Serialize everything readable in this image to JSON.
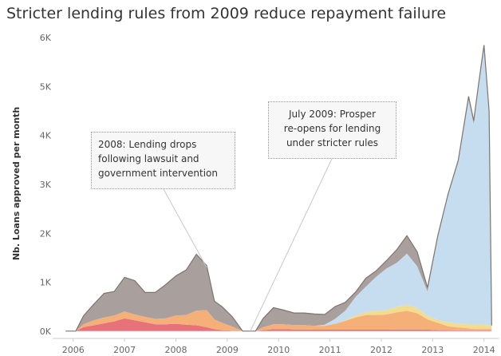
{
  "chart_data": {
    "type": "area",
    "title": "Stricter lending rules from 2009 reduce repayment failure",
    "ylabel": "Nb. Loans approved per month",
    "xlabel": "",
    "xlim": [
      2005.6,
      2014.3
    ],
    "ylim": [
      -150,
      6150
    ],
    "y_ticks": [
      0,
      1000,
      2000,
      3000,
      4000,
      5000,
      6000
    ],
    "y_tick_labels": [
      "0K",
      "1K",
      "2K",
      "3K",
      "4K",
      "5K",
      "6K"
    ],
    "x_ticks": [
      2006,
      2007,
      2008,
      2009,
      2010,
      2011,
      2012,
      2013,
      2014
    ],
    "x_tick_labels": [
      "2006",
      "2007",
      "2008",
      "2009",
      "2010",
      "2011",
      "2012",
      "2013",
      "2014"
    ],
    "stacked": true,
    "grid": false,
    "colors": {
      "red": "#e8727a",
      "orange": "#f5b07a",
      "yellow": "#f2dc8e",
      "blue": "#c6ddf0",
      "gray": "#a9a09d",
      "outline": "#7e7470",
      "axis": "#cccccc",
      "callout_line": "#c8c8c8"
    },
    "x": [
      2005.85,
      2006.05,
      2006.2,
      2006.4,
      2006.6,
      2006.8,
      2007.0,
      2007.2,
      2007.4,
      2007.6,
      2007.8,
      2008.0,
      2008.2,
      2008.4,
      2008.6,
      2008.75,
      2008.9,
      2009.1,
      2009.3,
      2009.4,
      2009.55,
      2009.7,
      2009.9,
      2010.1,
      2010.3,
      2010.5,
      2010.7,
      2010.9,
      2011.1,
      2011.3,
      2011.5,
      2011.7,
      2011.9,
      2012.1,
      2012.3,
      2012.5,
      2012.7,
      2012.9,
      2013.1,
      2013.3,
      2013.5,
      2013.7,
      2013.8,
      2013.9,
      2014.0,
      2014.1,
      2014.15
    ],
    "series": [
      {
        "values": [
          0,
          0,
          80,
          120,
          160,
          200,
          260,
          220,
          180,
          140,
          140,
          150,
          130,
          120,
          80,
          40,
          20,
          10,
          0,
          0,
          0,
          20,
          40,
          40,
          35,
          35,
          30,
          30,
          30,
          30,
          30,
          30,
          30,
          30,
          35,
          35,
          35,
          30,
          20,
          20,
          15,
          15,
          15,
          15,
          15,
          15,
          10
        ]
      },
      {
        "values": [
          0,
          0,
          60,
          100,
          120,
          120,
          140,
          120,
          110,
          110,
          120,
          170,
          200,
          300,
          350,
          200,
          150,
          80,
          0,
          0,
          0,
          60,
          100,
          100,
          90,
          90,
          80,
          80,
          120,
          180,
          250,
          300,
          300,
          310,
          350,
          380,
          330,
          210,
          150,
          80,
          60,
          40,
          30,
          30,
          30,
          30,
          25
        ]
      },
      {
        "values": [
          0,
          0,
          0,
          0,
          0,
          0,
          0,
          0,
          0,
          0,
          0,
          0,
          0,
          0,
          0,
          0,
          0,
          0,
          0,
          0,
          0,
          0,
          0,
          0,
          0,
          0,
          0,
          0,
          0,
          10,
          40,
          60,
          80,
          90,
          110,
          120,
          110,
          70,
          60,
          80,
          80,
          80,
          90,
          90,
          90,
          80,
          80
        ]
      },
      {
        "values": [
          0,
          0,
          0,
          0,
          0,
          0,
          0,
          0,
          0,
          0,
          0,
          0,
          0,
          0,
          0,
          0,
          0,
          0,
          0,
          0,
          0,
          0,
          0,
          0,
          0,
          0,
          0,
          20,
          100,
          200,
          380,
          520,
          700,
          850,
          900,
          1050,
          850,
          500,
          1700,
          2600,
          3300,
          4600,
          4100,
          4900,
          5650,
          4300,
          0
        ]
      },
      {
        "values": [
          0,
          0,
          170,
          330,
          490,
          490,
          700,
          690,
          500,
          540,
          690,
          810,
          920,
          1150,
          910,
          370,
          330,
          200,
          0,
          0,
          0,
          180,
          340,
          290,
          245,
          245,
          240,
          210,
          250,
          170,
          100,
          170,
          120,
          160,
          270,
          365,
          295,
          80,
          20,
          20,
          45,
          65,
          65,
          65,
          65,
          75,
          0
        ]
      }
    ],
    "annotations": [
      {
        "lines": [
          "2008: Lending drops",
          "following lawsuit and",
          "government intervention"
        ],
        "target_x": 2008.6,
        "target_y": 1300
      },
      {
        "lines": [
          "July 2009: Prosper",
          "re-opens for lending",
          "under stricter rules"
        ],
        "target_x": 2009.45,
        "target_y": 0
      }
    ]
  }
}
